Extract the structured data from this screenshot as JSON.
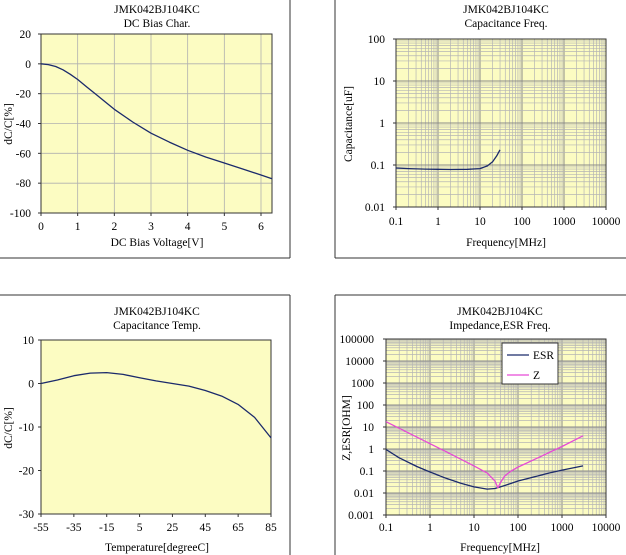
{
  "chart_data": [
    {
      "type": "line",
      "title": "JMK042BJ104KC",
      "subtitle": "DC Bias Char.",
      "xlabel": "DC Bias Voltage[V]",
      "ylabel": "dC/C[%]",
      "x_scale": "linear",
      "y_scale": "linear",
      "xlim": [
        0,
        6.3
      ],
      "ylim": [
        -100,
        20
      ],
      "x_ticks": [
        0,
        1,
        2,
        3,
        4,
        5,
        6
      ],
      "x_tick_labels": [
        "0",
        "1",
        "2",
        "3",
        "4",
        "5",
        "6"
      ],
      "y_ticks": [
        20,
        0,
        -20,
        -40,
        -60,
        -80,
        -100
      ],
      "y_tick_labels": [
        "20",
        "0",
        "-20",
        "-40",
        "-60",
        "-80",
        "-100"
      ],
      "grid": true,
      "series": [
        {
          "color": "#1b2a6b",
          "x": [
            0,
            0.2,
            0.4,
            0.6,
            0.8,
            1.0,
            1.25,
            1.5,
            1.75,
            2.0,
            2.5,
            3.0,
            3.5,
            4.0,
            4.5,
            5.0,
            5.5,
            6.0,
            6.3
          ],
          "y": [
            0,
            -0.5,
            -1.8,
            -4,
            -7,
            -10.5,
            -15.5,
            -20.5,
            -25.5,
            -30.5,
            -39,
            -46.5,
            -52.5,
            -58,
            -62.5,
            -66.5,
            -70.5,
            -74.5,
            -77
          ]
        }
      ]
    },
    {
      "type": "line",
      "title": "JMK042BJ104KC",
      "subtitle": "Capacitance Freq.",
      "xlabel": "Frequency[MHz]",
      "ylabel": "Capacitance[uF]",
      "x_scale": "log",
      "y_scale": "log",
      "xlim": [
        0.1,
        10000
      ],
      "ylim": [
        0.01,
        100
      ],
      "x_ticks": [
        0.1,
        1,
        10,
        100,
        1000,
        10000
      ],
      "x_tick_labels": [
        "0.1",
        "1",
        "10",
        "100",
        "1000",
        "10000"
      ],
      "y_ticks": [
        100,
        10,
        1,
        0.1,
        0.01
      ],
      "y_tick_labels": [
        "100",
        "10",
        "1",
        "0.1",
        "0.01"
      ],
      "grid": true,
      "series": [
        {
          "color": "#1b2a6b",
          "x": [
            0.1,
            0.2,
            0.5,
            1,
            2,
            5,
            10,
            15,
            20,
            25,
            30
          ],
          "y": [
            0.085,
            0.082,
            0.08,
            0.079,
            0.078,
            0.079,
            0.082,
            0.095,
            0.12,
            0.165,
            0.23
          ]
        }
      ]
    },
    {
      "type": "line",
      "title": "JMK042BJ104KC",
      "subtitle": "Capacitance Temp.",
      "xlabel": "Temperature[degreeC]",
      "ylabel": "dC/C[%]",
      "x_scale": "linear",
      "y_scale": "linear",
      "xlim": [
        -55,
        85
      ],
      "ylim": [
        -30,
        10
      ],
      "x_ticks": [
        -55,
        -35,
        -15,
        5,
        25,
        45,
        65,
        85
      ],
      "x_tick_labels": [
        "-55",
        "-35",
        "-15",
        "5",
        "25",
        "45",
        "65",
        "85"
      ],
      "y_ticks": [
        10,
        0,
        -10,
        -20,
        -30
      ],
      "y_tick_labels": [
        "10",
        "0",
        "-10",
        "-20",
        "-30"
      ],
      "grid": false,
      "series": [
        {
          "color": "#1b2a6b",
          "x": [
            -55,
            -45,
            -35,
            -25,
            -15,
            -5,
            5,
            15,
            25,
            35,
            45,
            55,
            65,
            75,
            85
          ],
          "y": [
            0,
            0.8,
            1.8,
            2.4,
            2.5,
            2.1,
            1.3,
            0.6,
            0,
            -0.6,
            -1.6,
            -2.9,
            -4.8,
            -7.8,
            -12.5
          ]
        }
      ]
    },
    {
      "type": "line",
      "title": "JMK042BJ104KC",
      "subtitle": "Impedance,ESR Freq.",
      "xlabel": "Frequency[MHz]",
      "ylabel": "Z,ESR[OHM]",
      "x_scale": "log",
      "y_scale": "log",
      "xlim": [
        0.1,
        10000
      ],
      "ylim": [
        0.001,
        100000
      ],
      "x_ticks": [
        0.1,
        1,
        10,
        100,
        1000,
        10000
      ],
      "x_tick_labels": [
        "0.1",
        "1",
        "10",
        "100",
        "1000",
        "10000"
      ],
      "y_ticks": [
        100000,
        10000,
        1000,
        100,
        10,
        1,
        0.1,
        0.01,
        0.001
      ],
      "y_tick_labels": [
        "100000",
        "10000",
        "1000",
        "100",
        "10",
        "1",
        "0.1",
        "0.01",
        "0.001"
      ],
      "grid": true,
      "legend_position": "top-center",
      "series": [
        {
          "name": "ESR",
          "color": "#1b2a6b",
          "x": [
            0.1,
            0.2,
            0.5,
            1,
            2,
            5,
            10,
            20,
            30,
            50,
            100,
            200,
            500,
            1000,
            3000
          ],
          "y": [
            0.95,
            0.4,
            0.16,
            0.09,
            0.052,
            0.028,
            0.019,
            0.015,
            0.016,
            0.022,
            0.035,
            0.05,
            0.08,
            0.11,
            0.17
          ]
        },
        {
          "name": "Z",
          "color": "#e64ad6",
          "x": [
            0.1,
            0.3,
            1,
            3,
            10,
            20,
            30,
            35,
            40,
            50,
            70,
            100,
            300,
            1000,
            3000
          ],
          "y": [
            17.5,
            5.8,
            1.75,
            0.58,
            0.17,
            0.08,
            0.035,
            0.017,
            0.03,
            0.06,
            0.1,
            0.15,
            0.42,
            1.3,
            4.0
          ]
        }
      ]
    }
  ]
}
